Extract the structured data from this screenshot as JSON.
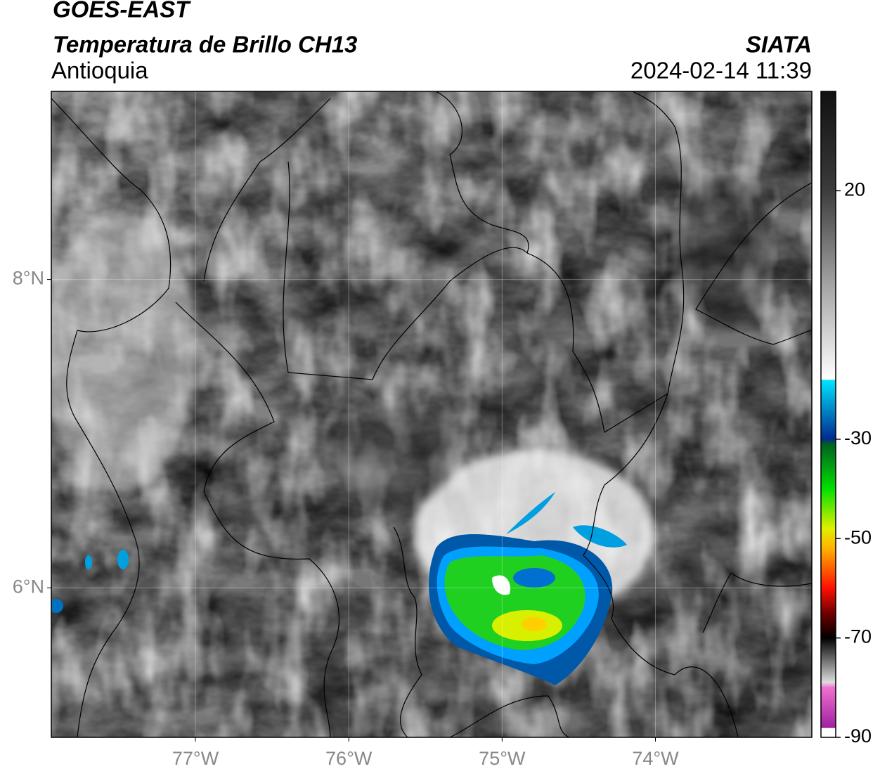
{
  "title": "GOES-EAST",
  "subtitle": "Temperatura de Brillo CH13",
  "region": "Antioquia",
  "source": "SIATA",
  "datetime": "2024-02-14 11:39",
  "map": {
    "xlim": [
      -77.94,
      -72.98
    ],
    "ylim": [
      5.03,
      9.22
    ],
    "xticks": [
      {
        "value": -77,
        "label": "77°W"
      },
      {
        "value": -76,
        "label": "76°W"
      },
      {
        "value": -75,
        "label": "75°W"
      },
      {
        "value": -74,
        "label": "74°W"
      }
    ],
    "yticks": [
      {
        "value": 8,
        "label": "8°N"
      },
      {
        "value": 6,
        "label": "6°N"
      }
    ],
    "grid": true
  },
  "colorbar": {
    "ylim": [
      -90,
      40
    ],
    "ticks": [
      20,
      -30,
      -50,
      -70,
      -90
    ]
  }
}
